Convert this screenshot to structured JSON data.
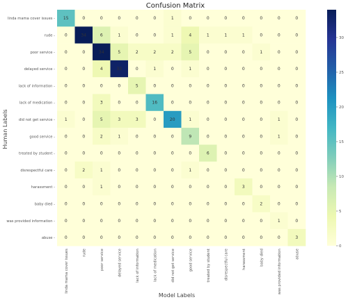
{
  "chart_data": {
    "type": "heatmap",
    "title": "Confusion Matrix",
    "xlabel": "Model Labels",
    "ylabel": "Human Labels",
    "row_labels": [
      "linda mama cover issues",
      "rude",
      "poor service",
      "delayed service",
      "lack of information",
      "lack of medication",
      "did not get service",
      "good service",
      "treated by student",
      "disrespectful care",
      "harassment",
      "baby died",
      "was provided information",
      "abuse"
    ],
    "col_labels": [
      "linda mama cover issues",
      "rude",
      "poor service",
      "delayed service",
      "lack of information",
      "lack of medication",
      "did not get service",
      "good service",
      "treated by student",
      "disrespectful care",
      "harassment",
      "baby died",
      "was provided information",
      "abuse"
    ],
    "values": [
      [
        15,
        0,
        0,
        0,
        0,
        0,
        1,
        0,
        0,
        0,
        0,
        0,
        0,
        0
      ],
      [
        0,
        34,
        6,
        1,
        0,
        0,
        1,
        4,
        1,
        1,
        1,
        0,
        0,
        0
      ],
      [
        0,
        0,
        34,
        5,
        2,
        2,
        2,
        5,
        0,
        0,
        0,
        1,
        0,
        0
      ],
      [
        0,
        0,
        4,
        33,
        0,
        1,
        0,
        1,
        0,
        0,
        0,
        0,
        0,
        0
      ],
      [
        0,
        0,
        0,
        0,
        5,
        0,
        0,
        0,
        0,
        0,
        0,
        0,
        0,
        0
      ],
      [
        0,
        0,
        3,
        0,
        0,
        16,
        0,
        0,
        0,
        0,
        0,
        0,
        0,
        0
      ],
      [
        1,
        0,
        5,
        3,
        3,
        0,
        20,
        1,
        0,
        0,
        0,
        0,
        1,
        0
      ],
      [
        0,
        0,
        2,
        1,
        0,
        0,
        0,
        9,
        0,
        0,
        0,
        0,
        1,
        0
      ],
      [
        0,
        0,
        0,
        0,
        0,
        0,
        0,
        0,
        6,
        0,
        0,
        0,
        0,
        0
      ],
      [
        0,
        2,
        1,
        0,
        0,
        0,
        0,
        1,
        0,
        0,
        0,
        0,
        0,
        0
      ],
      [
        0,
        0,
        1,
        0,
        0,
        0,
        0,
        0,
        0,
        0,
        3,
        0,
        0,
        0
      ],
      [
        0,
        0,
        0,
        0,
        0,
        0,
        0,
        0,
        0,
        0,
        0,
        2,
        0,
        0
      ],
      [
        0,
        0,
        0,
        0,
        0,
        0,
        0,
        0,
        0,
        0,
        0,
        0,
        1,
        0
      ],
      [
        0,
        0,
        0,
        0,
        0,
        0,
        0,
        0,
        0,
        0,
        0,
        0,
        0,
        3
      ]
    ],
    "colorbar": {
      "min": 0,
      "max": 34,
      "ticks": [
        0,
        5,
        10,
        15,
        20,
        25,
        30
      ]
    },
    "colormap": "YlGnBu",
    "colors": [
      "#ffffd9",
      "#edf8b1",
      "#c7e9b4",
      "#7fcdbb",
      "#41b6c4",
      "#1d91c0",
      "#225ea8",
      "#253494",
      "#081d58"
    ]
  }
}
